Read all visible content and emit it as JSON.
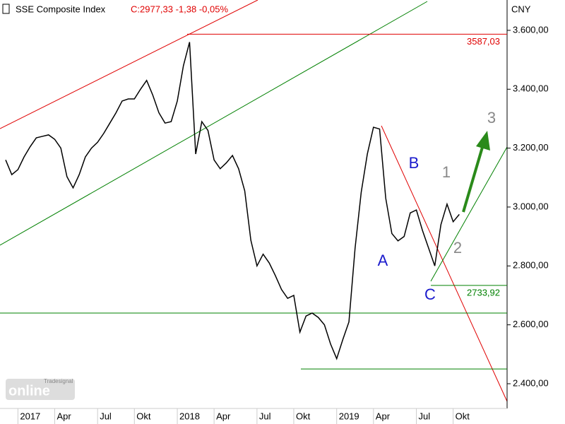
{
  "chart_data": {
    "type": "line",
    "title": "SSE Composite Index",
    "quote": "C:2977,33 -1,38 -0,05%",
    "currency": "CNY",
    "watermark": [
      "Tradesignal",
      "online"
    ],
    "categories": [
      null,
      null,
      "2017",
      null,
      null,
      null,
      null,
      null,
      "Apr",
      null,
      null,
      null,
      null,
      null,
      null,
      "Jul",
      null,
      null,
      null,
      null,
      null,
      "Okt",
      null,
      null,
      null,
      null,
      null,
      null,
      "2018",
      null,
      null,
      null,
      null,
      null,
      "Apr",
      null,
      null,
      null,
      null,
      null,
      null,
      "Jul",
      null,
      null,
      null,
      null,
      null,
      "Okt",
      null,
      null,
      null,
      null,
      null,
      null,
      "2019",
      null,
      null,
      null,
      null,
      null,
      "Apr",
      null,
      null,
      null,
      null,
      null,
      null,
      "Jul",
      null,
      null,
      null,
      null,
      null,
      "Okt",
      null
    ],
    "series": [
      {
        "name": "SSE Composite Index",
        "color": "#000000",
        "values": [
          3160,
          3110,
          3127,
          3170,
          3205,
          3235,
          3240,
          3245,
          3230,
          3200,
          3103,
          3065,
          3110,
          3170,
          3200,
          3220,
          3250,
          3285,
          3320,
          3360,
          3367,
          3367,
          3400,
          3430,
          3380,
          3320,
          3285,
          3290,
          3360,
          3480,
          3560,
          3180,
          3290,
          3260,
          3160,
          3130,
          3150,
          3175,
          3130,
          3055,
          2887,
          2800,
          2840,
          2810,
          2767,
          2720,
          2690,
          2700,
          2575,
          2630,
          2640,
          2625,
          2600,
          2535,
          2485,
          2550,
          2610,
          2860,
          3050,
          3180,
          3271,
          3265,
          3030,
          2910,
          2885,
          2900,
          2980,
          2990,
          2920,
          2860,
          2800,
          2940,
          3010,
          2950,
          2975
        ]
      }
    ],
    "ylim": [
      2316,
      3703
    ],
    "yticks": [
      {
        "value": 2400,
        "label": "2.400,00"
      },
      {
        "value": 2600,
        "label": "2.600,00"
      },
      {
        "value": 2800,
        "label": "2.800,00"
      },
      {
        "value": 3000,
        "label": "3.000,00"
      },
      {
        "value": 3200,
        "label": "3.200,00"
      },
      {
        "value": 3400,
        "label": "3.400,00"
      },
      {
        "value": 3600,
        "label": "3.600,00"
      }
    ],
    "levels": [
      {
        "value": 3587.03,
        "label": "3587,03",
        "color": "#e00000"
      },
      {
        "value": 2733.92,
        "label": "2733,92",
        "color": "#008000"
      }
    ],
    "support_lines": [
      2640,
      2450
    ],
    "wave_labels": [
      "A",
      "B",
      "C",
      "1",
      "2",
      "3"
    ]
  }
}
